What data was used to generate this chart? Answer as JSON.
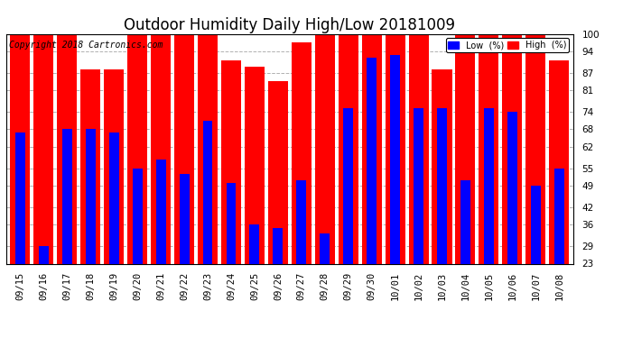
{
  "title": "Outdoor Humidity Daily High/Low 20181009",
  "copyright": "Copyright 2018 Cartronics.com",
  "categories": [
    "09/15",
    "09/16",
    "09/17",
    "09/18",
    "09/19",
    "09/20",
    "09/21",
    "09/22",
    "09/23",
    "09/24",
    "09/25",
    "09/26",
    "09/27",
    "09/28",
    "09/29",
    "09/30",
    "10/01",
    "10/02",
    "10/03",
    "10/04",
    "10/05",
    "10/06",
    "10/07",
    "10/08"
  ],
  "high": [
    100,
    100,
    100,
    88,
    88,
    100,
    100,
    100,
    100,
    91,
    89,
    84,
    97,
    100,
    100,
    100,
    100,
    100,
    88,
    100,
    100,
    100,
    100,
    91
  ],
  "low": [
    67,
    29,
    68,
    68,
    67,
    55,
    58,
    53,
    71,
    50,
    36,
    35,
    51,
    33,
    75,
    92,
    93,
    75,
    75,
    51,
    75,
    74,
    49,
    55
  ],
  "bar_color_high": "#ff0000",
  "bar_color_low": "#0000ff",
  "background_color": "#ffffff",
  "grid_color": "#b0b0b0",
  "ylim_min": 23,
  "ylim_max": 100,
  "yticks": [
    23,
    29,
    36,
    42,
    49,
    55,
    62,
    68,
    74,
    81,
    87,
    94,
    100
  ],
  "legend_low_label": "Low  (%)",
  "legend_high_label": "High  (%)",
  "title_fontsize": 12,
  "tick_fontsize": 7.5,
  "copyright_fontsize": 7
}
